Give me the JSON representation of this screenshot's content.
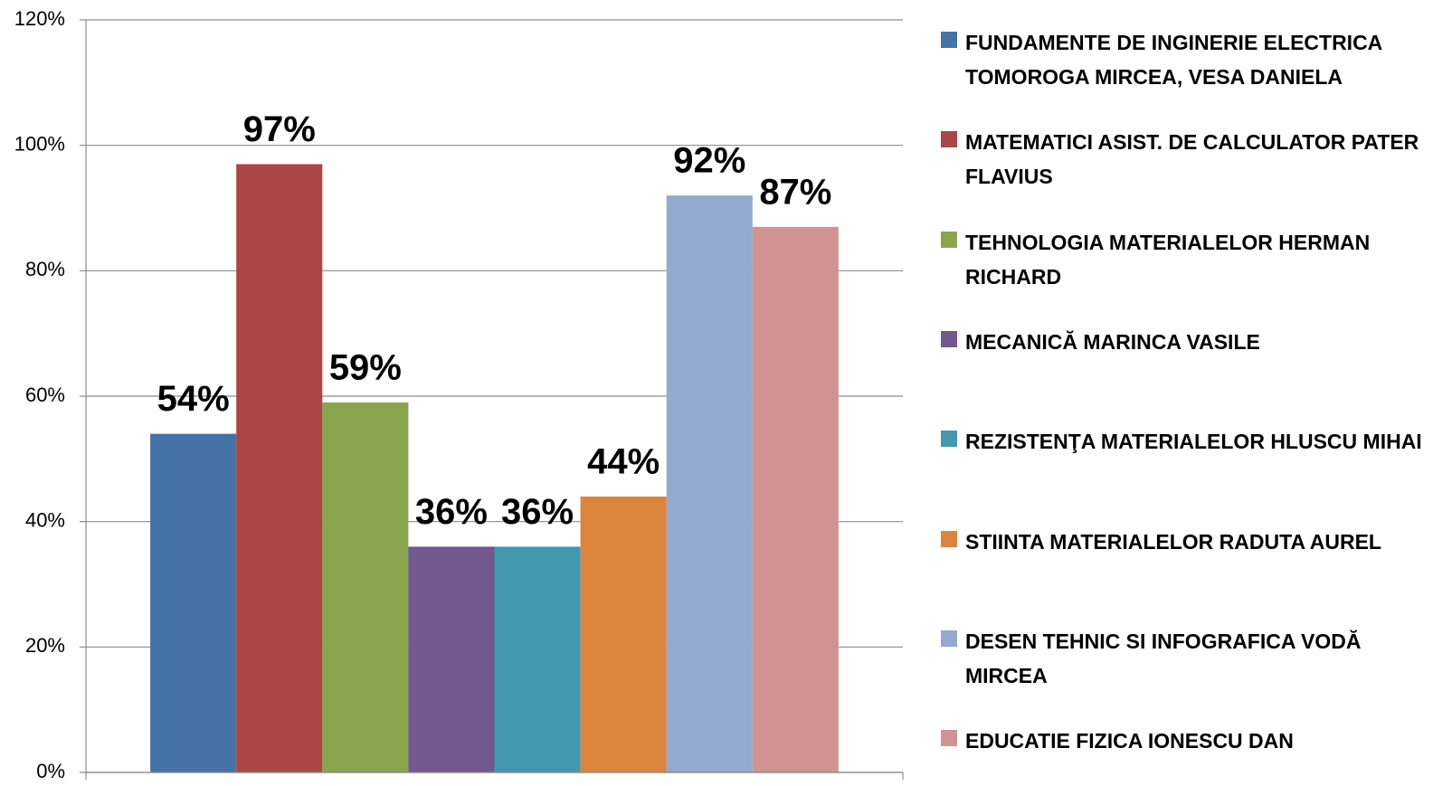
{
  "chart_data": {
    "type": "bar",
    "categories": [
      null
    ],
    "series": [
      {
        "name": "FUNDAMENTE DE INGINERIE ELECTRICA TOMOROGA MIRCEA, VESA DANIELA",
        "color": "#4572a7",
        "values": [
          54
        ],
        "value_labels": [
          "54%"
        ]
      },
      {
        "name": "MATEMATICI ASIST. DE CALCULATOR PATER FLAVIUS",
        "color": "#aa4643",
        "values": [
          97
        ],
        "value_labels": [
          "97%"
        ]
      },
      {
        "name": "TEHNOLOGIA MATERIALELOR HERMAN RICHARD",
        "color": "#89a54e",
        "values": [
          59
        ],
        "value_labels": [
          "59%"
        ]
      },
      {
        "name": "MECANICĂ MARINCA VASILE",
        "color": "#71588f",
        "values": [
          36
        ],
        "value_labels": [
          "36%"
        ]
      },
      {
        "name": "REZISTENŢA MATERIALELOR HLUSCU MIHAI",
        "color": "#4198af",
        "values": [
          36
        ],
        "value_labels": [
          "36%"
        ]
      },
      {
        "name": "STIINTA MATERIALELOR RADUTA AUREL",
        "color": "#db843d",
        "values": [
          44
        ],
        "value_labels": [
          "44%"
        ]
      },
      {
        "name": "DESEN TEHNIC SI INFOGRAFICA VODĂ MIRCEA",
        "color": "#93a9cf",
        "values": [
          92
        ],
        "value_labels": [
          "92%"
        ]
      },
      {
        "name": "EDUCATIE FIZICA IONESCU DAN",
        "color": "#d19392",
        "values": [
          87
        ],
        "value_labels": [
          "87%"
        ]
      }
    ],
    "ylim": [
      0,
      120
    ],
    "yticks": [
      {
        "value": 0,
        "label": "0%"
      },
      {
        "value": 20,
        "label": "20%"
      },
      {
        "value": 40,
        "label": "40%"
      },
      {
        "value": 60,
        "label": "60%"
      },
      {
        "value": 80,
        "label": "80%"
      },
      {
        "value": 100,
        "label": "100%"
      },
      {
        "value": 120,
        "label": "120%"
      }
    ],
    "grid": true,
    "legend": "right"
  }
}
